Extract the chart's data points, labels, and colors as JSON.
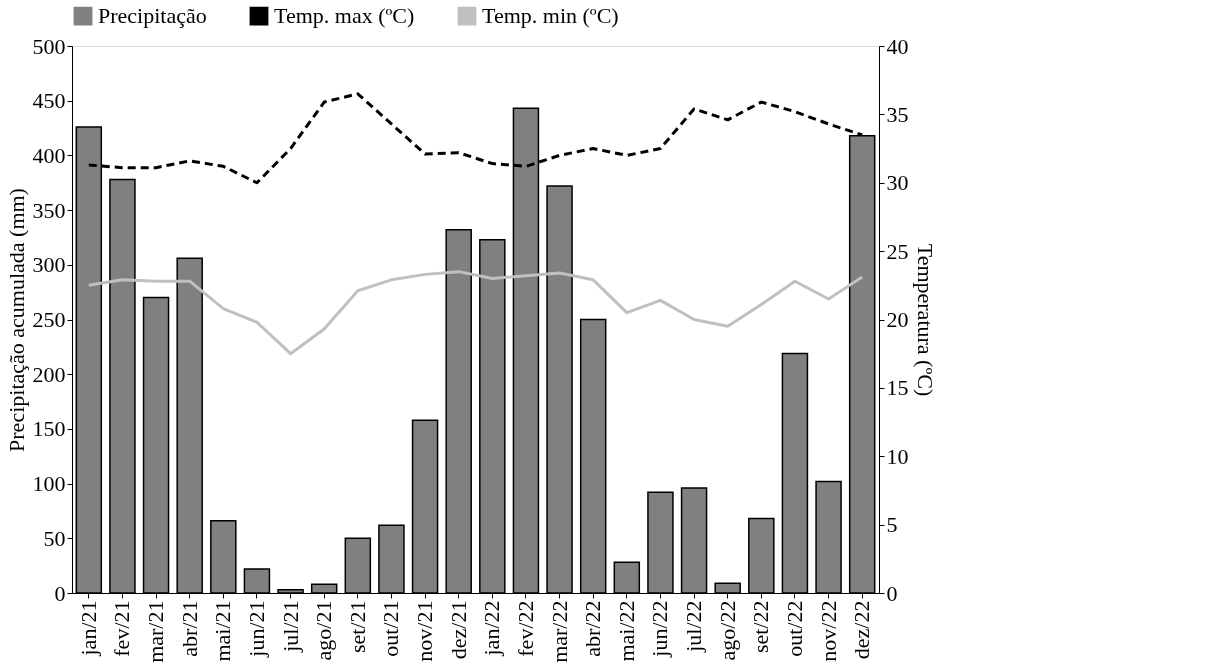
{
  "chart_data": {
    "type": "bar",
    "categories": [
      "jan/21",
      "fev/21",
      "mar/21",
      "abr/21",
      "mai/21",
      "jun/21",
      "jul/21",
      "ago/21",
      "set/21",
      "out/21",
      "nov/21",
      "dez/21",
      "jan/22",
      "fev/22",
      "mar/22",
      "abr/22",
      "mai/22",
      "jun/22",
      "jul/22",
      "ago/22",
      "set/22",
      "out/22",
      "nov/22",
      "dez/22"
    ],
    "ylabel": "Precipitação acumulada (mm)",
    "y2label": "Temperatura (ºC)",
    "ylim": [
      0,
      500
    ],
    "yticks": [
      0,
      50,
      100,
      150,
      200,
      250,
      300,
      350,
      400,
      450,
      500
    ],
    "y2lim": [
      0,
      40
    ],
    "y2ticks": [
      0,
      5,
      10,
      15,
      20,
      25,
      30,
      35,
      40
    ],
    "grid": false,
    "legend": "top",
    "series": [
      {
        "name": "Precipitação",
        "color": "#808080",
        "values": [
          426,
          378,
          270,
          306,
          66,
          22,
          3,
          8,
          50,
          62,
          158,
          332,
          323,
          443,
          372,
          250,
          28,
          92,
          96,
          9,
          68,
          219,
          102,
          418
        ]
      },
      {
        "name": "Temp. max (ºC)",
        "type": "line",
        "axis": "y2",
        "color": "#000000",
        "line_style": "dashed",
        "values": [
          31.3,
          31.1,
          31.1,
          31.6,
          31.2,
          30.0,
          32.5,
          35.9,
          36.5,
          34.3,
          32.1,
          32.2,
          31.4,
          31.2,
          32.0,
          32.5,
          32.0,
          32.5,
          35.4,
          34.6,
          35.9,
          35.2,
          34.3,
          33.5
        ]
      },
      {
        "name": "Temp. min (ºC)",
        "type": "line",
        "axis": "y2",
        "color": "#c0c0c0",
        "line_style": "solid",
        "values": [
          22.5,
          22.9,
          22.8,
          22.8,
          20.8,
          19.8,
          17.5,
          19.3,
          22.1,
          22.9,
          23.3,
          23.5,
          23.0,
          23.2,
          23.4,
          22.9,
          20.5,
          21.4,
          20.0,
          19.5,
          21.1,
          22.8,
          21.5,
          23.1
        ]
      }
    ]
  }
}
